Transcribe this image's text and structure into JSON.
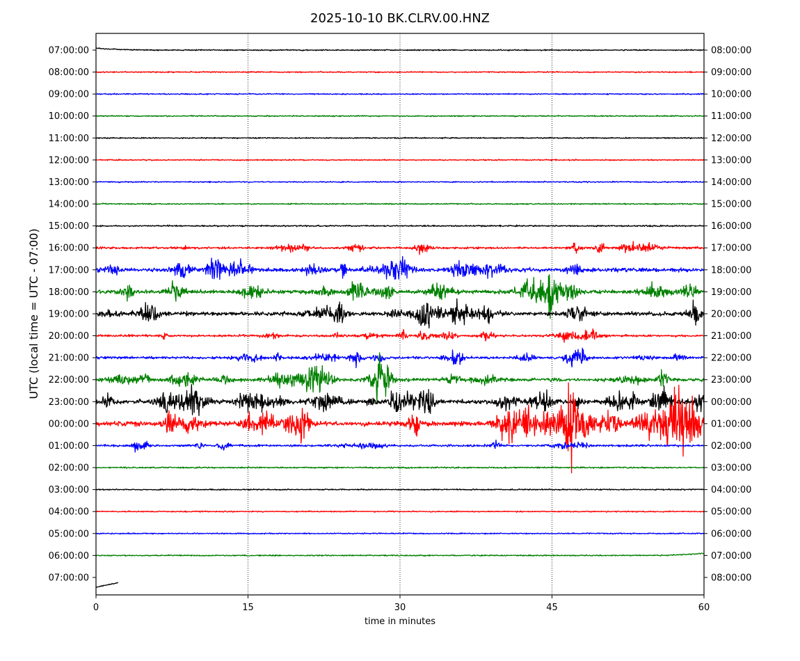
{
  "chart_data": {
    "type": "line",
    "subtype": "helicorder",
    "title": "2025-10-10 BK.CLRV.00.HNZ",
    "xlabel": "time in minutes",
    "ylabel": "UTC (local time = UTC - 07:00)",
    "xlim": [
      0,
      60
    ],
    "xticks": [
      "0",
      "15",
      "30",
      "45",
      "60"
    ],
    "xtick_values": [
      0,
      15,
      30,
      45,
      60
    ],
    "grid": "vertical dotted at 15, 30, 45",
    "left_labels": [
      "07:00:00",
      "08:00:00",
      "09:00:00",
      "10:00:00",
      "11:00:00",
      "12:00:00",
      "13:00:00",
      "14:00:00",
      "15:00:00",
      "16:00:00",
      "17:00:00",
      "18:00:00",
      "19:00:00",
      "20:00:00",
      "21:00:00",
      "22:00:00",
      "23:00:00",
      "00:00:00",
      "01:00:00",
      "02:00:00",
      "03:00:00",
      "04:00:00",
      "05:00:00",
      "06:00:00",
      "07:00:00"
    ],
    "right_labels": [
      "08:00:00",
      "09:00:00",
      "10:00:00",
      "11:00:00",
      "12:00:00",
      "13:00:00",
      "14:00:00",
      "15:00:00",
      "16:00:00",
      "17:00:00",
      "18:00:00",
      "19:00:00",
      "20:00:00",
      "21:00:00",
      "22:00:00",
      "23:00:00",
      "00:00:00",
      "01:00:00",
      "02:00:00",
      "03:00:00",
      "04:00:00",
      "05:00:00",
      "06:00:00",
      "07:00:00",
      "08:00:00"
    ],
    "colors": [
      "#000000",
      "#ff0000",
      "#0000ff",
      "#008000"
    ],
    "row_activity": [
      0.05,
      0.05,
      0.05,
      0.05,
      0.05,
      0.05,
      0.05,
      0.05,
      0.06,
      0.25,
      0.45,
      0.45,
      0.45,
      0.25,
      0.3,
      0.4,
      0.55,
      0.6,
      0.25,
      0.06,
      0.05,
      0.05,
      0.05,
      0.05,
      0.05
    ],
    "last_row_end_minute": 2.2
  }
}
